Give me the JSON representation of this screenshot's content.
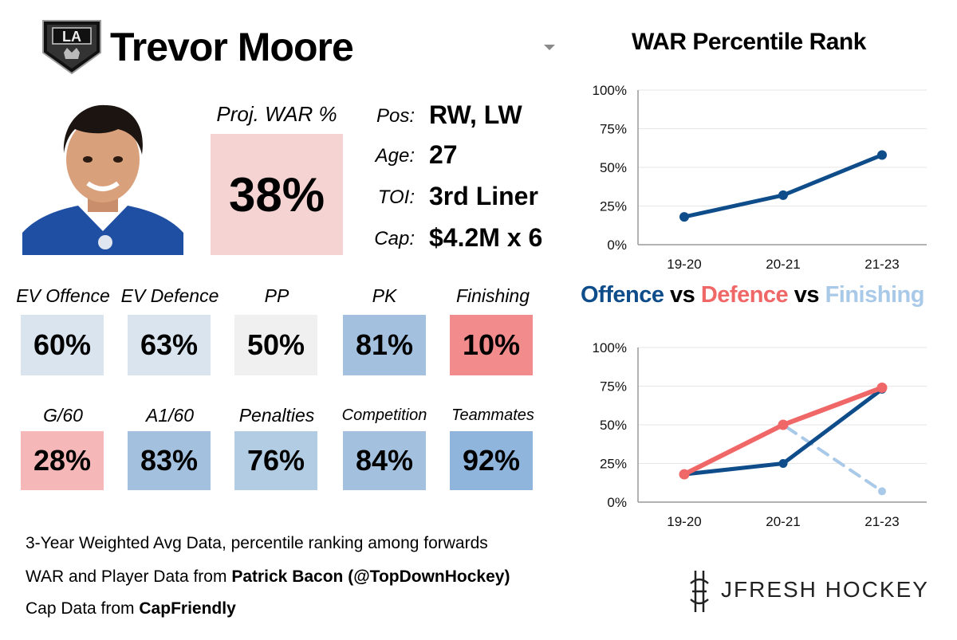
{
  "player": {
    "name": "Trevor Moore",
    "team_logo_text": "LA",
    "proj_war_label": "Proj. WAR %",
    "proj_war_value": "38%",
    "info": [
      {
        "label": "Pos:",
        "value": "RW, LW"
      },
      {
        "label": "Age:",
        "value": "27"
      },
      {
        "label": "TOI:",
        "value": "3rd Liner"
      },
      {
        "label": "Cap:",
        "value": "$4.2M x 6"
      }
    ]
  },
  "stats_row1": [
    {
      "label": "EV Offence",
      "value": "60%",
      "color": "#d9e4ee"
    },
    {
      "label": "EV Defence",
      "value": "63%",
      "color": "#d9e4ee"
    },
    {
      "label": "PP",
      "value": "50%",
      "color": "#f0f0f0"
    },
    {
      "label": "PK",
      "value": "81%",
      "color": "#a3c1de"
    },
    {
      "label": "Finishing",
      "value": "10%",
      "color": "#f28c8c"
    }
  ],
  "stats_row2": [
    {
      "label": "G/60",
      "value": "28%",
      "color": "#f5b7b7"
    },
    {
      "label": "A1/60",
      "value": "83%",
      "color": "#a3c1de"
    },
    {
      "label": "Penalties",
      "value": "76%",
      "color": "#b2cce4"
    },
    {
      "label": "Competition",
      "value": "84%",
      "color": "#a3c1de"
    },
    {
      "label": "Teammates",
      "value": "92%",
      "color": "#8fb5dc"
    }
  ],
  "footer": {
    "line1": "3-Year Weighted Avg Data, percentile ranking among forwards",
    "line2_prefix": "WAR and Player Data from ",
    "line2_bold": "Patrick Bacon (@TopDownHockey)",
    "line3_prefix": "Cap Data from ",
    "line3_bold": "CapFriendly"
  },
  "brand": "JFRESH HOCKEY",
  "chart_titles": {
    "war": "WAR Percentile Rank",
    "offence": "Offence",
    "vs1": " vs ",
    "defence": "Defence",
    "vs2": " vs ",
    "finishing": "Finishing"
  },
  "colors": {
    "offence": "#0f4c8a",
    "defence": "#f06767",
    "finishing": "#a9c9e8"
  },
  "chart_data": [
    {
      "type": "line",
      "title": "WAR Percentile Rank",
      "categories": [
        "19-20",
        "20-21",
        "21-23"
      ],
      "series": [
        {
          "name": "WAR",
          "values": [
            18,
            32,
            58
          ]
        }
      ],
      "ylim": [
        0,
        100
      ],
      "yticks": [
        "0%",
        "25%",
        "50%",
        "75%",
        "100%"
      ],
      "grid": true
    },
    {
      "type": "line",
      "title": "Offence vs Defence vs Finishing",
      "categories": [
        "19-20",
        "20-21",
        "21-23"
      ],
      "series": [
        {
          "name": "Offence",
          "values": [
            18,
            25,
            73
          ]
        },
        {
          "name": "Defence",
          "values": [
            18,
            50,
            74
          ]
        },
        {
          "name": "Finishing",
          "values": [
            18,
            50,
            7
          ]
        }
      ],
      "ylim": [
        0,
        100
      ],
      "yticks": [
        "0%",
        "25%",
        "50%",
        "75%",
        "100%"
      ],
      "grid": true
    }
  ]
}
